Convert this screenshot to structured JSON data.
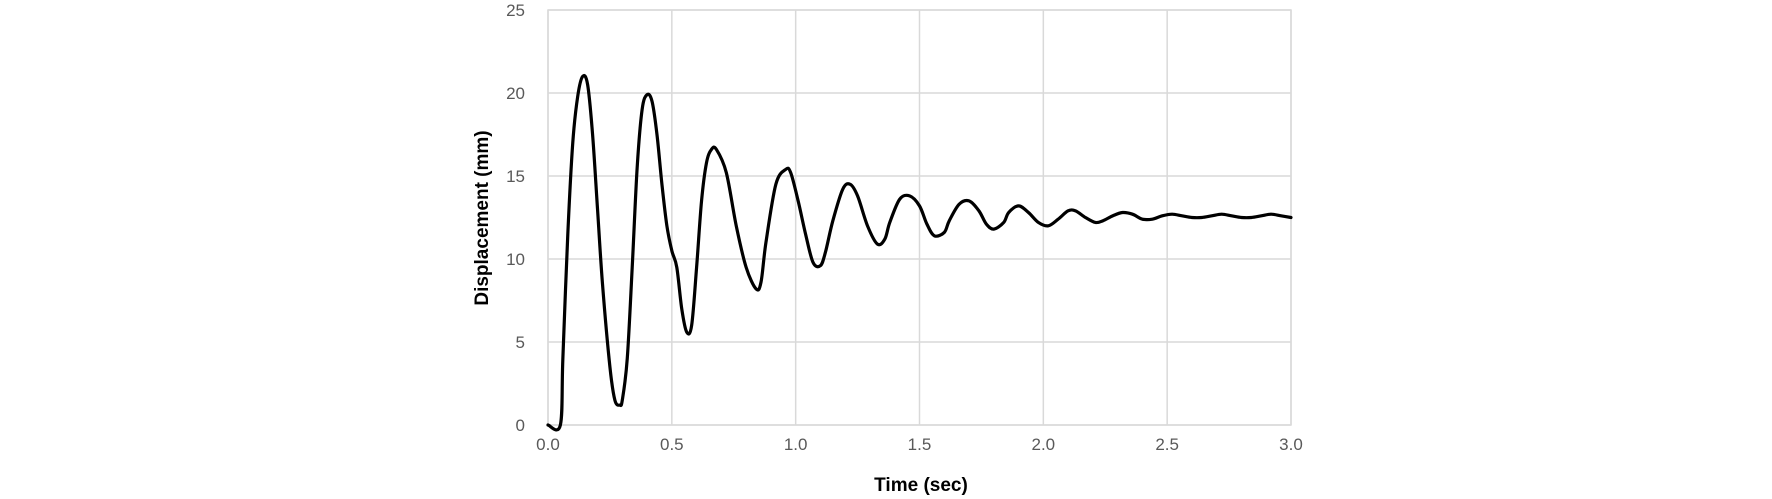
{
  "chart_data": {
    "type": "line",
    "title": "",
    "xlabel": "Time (sec)",
    "ylabel": "Displacement (mm)",
    "xlim": [
      0.0,
      3.0
    ],
    "ylim": [
      0,
      25
    ],
    "xticks": [
      "0.0",
      "0.5",
      "1.0",
      "1.5",
      "2.0",
      "2.5",
      "3.0"
    ],
    "yticks": [
      "0",
      "5",
      "10",
      "15",
      "20",
      "25"
    ],
    "grid": true,
    "legend": "none",
    "line_color": "#000000",
    "grid_color": "#d9d9d9",
    "series": [
      {
        "x": [
          0.0,
          0.05,
          0.06,
          0.08,
          0.1,
          0.12,
          0.14,
          0.16,
          0.18,
          0.2,
          0.22,
          0.25,
          0.27,
          0.29,
          0.3,
          0.32,
          0.34,
          0.36,
          0.38,
          0.4,
          0.42,
          0.44,
          0.46,
          0.48,
          0.5,
          0.52,
          0.54,
          0.56,
          0.58,
          0.6,
          0.62,
          0.64,
          0.66,
          0.68,
          0.72,
          0.76,
          0.8,
          0.84,
          0.86,
          0.88,
          0.92,
          0.96,
          0.98,
          1.01,
          1.04,
          1.07,
          1.1,
          1.12,
          1.15,
          1.19,
          1.22,
          1.25,
          1.29,
          1.33,
          1.36,
          1.38,
          1.42,
          1.46,
          1.5,
          1.53,
          1.56,
          1.6,
          1.62,
          1.66,
          1.7,
          1.74,
          1.77,
          1.8,
          1.84,
          1.86,
          1.9,
          1.94,
          1.98,
          2.02,
          2.06,
          2.1,
          2.13,
          2.17,
          2.21,
          2.24,
          2.28,
          2.32,
          2.36,
          2.4,
          2.44,
          2.48,
          2.52,
          2.56,
          2.6,
          2.64,
          2.68,
          2.72,
          2.76,
          2.8,
          2.84,
          2.88,
          2.92,
          2.96,
          3.0
        ],
        "y": [
          0.0,
          0.0,
          4.0,
          11.5,
          17.0,
          19.8,
          21.0,
          20.5,
          17.5,
          13.0,
          8.5,
          3.5,
          1.5,
          1.2,
          1.5,
          4.0,
          9.5,
          15.5,
          19.0,
          19.9,
          19.5,
          17.5,
          14.5,
          12.0,
          10.5,
          9.5,
          7.0,
          5.6,
          6.0,
          9.5,
          13.5,
          15.8,
          16.6,
          16.6,
          15.2,
          12.0,
          9.5,
          8.2,
          8.6,
          11.0,
          14.5,
          15.4,
          15.2,
          13.5,
          11.5,
          9.8,
          9.6,
          10.4,
          12.3,
          14.2,
          14.5,
          13.8,
          12.0,
          10.9,
          11.2,
          12.2,
          13.6,
          13.8,
          13.2,
          12.1,
          11.4,
          11.6,
          12.3,
          13.3,
          13.5,
          12.9,
          12.1,
          11.8,
          12.2,
          12.8,
          13.2,
          12.8,
          12.2,
          12.0,
          12.4,
          12.9,
          12.9,
          12.5,
          12.2,
          12.3,
          12.6,
          12.8,
          12.7,
          12.4,
          12.4,
          12.6,
          12.7,
          12.6,
          12.5,
          12.5,
          12.6,
          12.7,
          12.6,
          12.5,
          12.5,
          12.6,
          12.7,
          12.6,
          12.5
        ]
      }
    ]
  }
}
